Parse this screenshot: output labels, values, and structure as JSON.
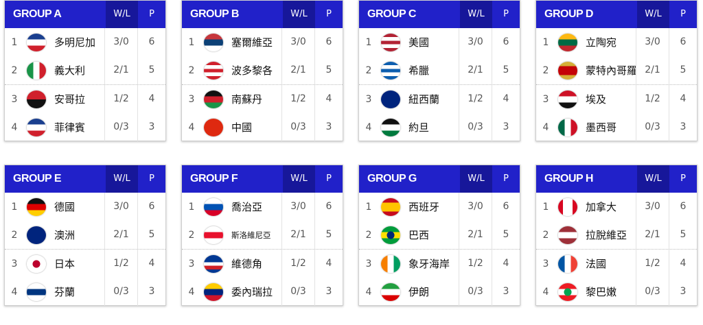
{
  "headers": {
    "wl": "W/L",
    "p": "P"
  },
  "colors": {
    "header": "#2121c9",
    "header_wl": "#17179a"
  },
  "groups": [
    {
      "title": "GROUP A",
      "teams": [
        {
          "rank": "1",
          "name": "多明尼加",
          "wl": "3/0",
          "p": "6",
          "flag": [
            "#1a3f8f",
            "#ffffff",
            "#d0202c"
          ],
          "dir": "v"
        },
        {
          "rank": "2",
          "name": "義大利",
          "wl": "2/1",
          "p": "5",
          "flag": [
            "#1a9448",
            "#ffffff",
            "#d0202c"
          ],
          "dir": "h"
        },
        {
          "rank": "3",
          "name": "安哥拉",
          "wl": "1/2",
          "p": "4",
          "flag": [
            "#d0202c",
            "#111111"
          ],
          "dir": "v"
        },
        {
          "rank": "4",
          "name": "菲律賓",
          "wl": "0/3",
          "p": "3",
          "flag": [
            "#1a3f8f",
            "#ffffff",
            "#d0202c"
          ],
          "dir": "v"
        }
      ]
    },
    {
      "title": "GROUP B",
      "teams": [
        {
          "rank": "1",
          "name": "塞爾維亞",
          "wl": "3/0",
          "p": "6",
          "flag": [
            "#c6363c",
            "#0c4076",
            "#ffffff"
          ],
          "dir": "v"
        },
        {
          "rank": "2",
          "name": "波多黎各",
          "wl": "2/1",
          "p": "5",
          "flag": [
            "#d0202c",
            "#ffffff",
            "#d0202c",
            "#ffffff",
            "#d0202c"
          ],
          "dir": "v"
        },
        {
          "rank": "3",
          "name": "南蘇丹",
          "wl": "1/2",
          "p": "4",
          "flag": [
            "#111111",
            "#d0202c",
            "#1a9448"
          ],
          "dir": "v"
        },
        {
          "rank": "4",
          "name": "中國",
          "wl": "0/3",
          "p": "3",
          "flag": [
            "#de2910",
            "#de2910"
          ],
          "dir": "v"
        }
      ]
    },
    {
      "title": "GROUP C",
      "teams": [
        {
          "rank": "1",
          "name": "美國",
          "wl": "3/0",
          "p": "6",
          "flag": [
            "#b22234",
            "#ffffff",
            "#b22234",
            "#ffffff",
            "#b22234"
          ],
          "dir": "v"
        },
        {
          "rank": "2",
          "name": "希臘",
          "wl": "2/1",
          "p": "5",
          "flag": [
            "#0d5eaf",
            "#ffffff",
            "#0d5eaf",
            "#ffffff",
            "#0d5eaf"
          ],
          "dir": "v"
        },
        {
          "rank": "3",
          "name": "紐西蘭",
          "wl": "1/2",
          "p": "4",
          "flag": [
            "#00247d",
            "#00247d"
          ],
          "dir": "v"
        },
        {
          "rank": "4",
          "name": "約旦",
          "wl": "0/3",
          "p": "3",
          "flag": [
            "#111111",
            "#ffffff",
            "#007a3d"
          ],
          "dir": "v"
        }
      ]
    },
    {
      "title": "GROUP D",
      "teams": [
        {
          "rank": "1",
          "name": "立陶宛",
          "wl": "3/0",
          "p": "6",
          "flag": [
            "#fdb913",
            "#006a44",
            "#c1272d"
          ],
          "dir": "v"
        },
        {
          "rank": "2",
          "name": "蒙特內哥羅",
          "wl": "2/1",
          "p": "5",
          "flag": [
            "#d4af37",
            "#c40308",
            "#c40308",
            "#d4af37"
          ],
          "dir": "v"
        },
        {
          "rank": "3",
          "name": "埃及",
          "wl": "1/2",
          "p": "4",
          "flag": [
            "#ce1126",
            "#ffffff",
            "#111111"
          ],
          "dir": "v"
        },
        {
          "rank": "4",
          "name": "墨西哥",
          "wl": "0/3",
          "p": "3",
          "flag": [
            "#006847",
            "#ffffff",
            "#ce1126"
          ],
          "dir": "h"
        }
      ]
    },
    {
      "title": "GROUP E",
      "teams": [
        {
          "rank": "1",
          "name": "德國",
          "wl": "3/0",
          "p": "6",
          "flag": [
            "#111111",
            "#dd0000",
            "#ffce00"
          ],
          "dir": "v"
        },
        {
          "rank": "2",
          "name": "澳洲",
          "wl": "2/1",
          "p": "5",
          "flag": [
            "#00247d",
            "#00247d"
          ],
          "dir": "v"
        },
        {
          "rank": "3",
          "name": "日本",
          "wl": "1/2",
          "p": "4",
          "flag": [
            "#ffffff",
            "#ffffff"
          ],
          "dir": "v",
          "dot": "#bc002d"
        },
        {
          "rank": "4",
          "name": "芬蘭",
          "wl": "0/3",
          "p": "3",
          "flag": [
            "#ffffff",
            "#003580",
            "#ffffff"
          ],
          "dir": "v"
        }
      ]
    },
    {
      "title": "GROUP F",
      "teams": [
        {
          "rank": "1",
          "name": "喬治亞",
          "wl": "3/0",
          "p": "6",
          "flag": [
            "#ffffff",
            "#0052b4",
            "#d80027"
          ],
          "dir": "v"
        },
        {
          "rank": "2",
          "name": "斯洛維尼亞",
          "wl": "2/1",
          "p": "5",
          "flag": [
            "#ffffff",
            "#e8112d",
            "#ffffff"
          ],
          "dir": "v",
          "small": true
        },
        {
          "rank": "3",
          "name": "維德角",
          "wl": "1/2",
          "p": "4",
          "flag": [
            "#003893",
            "#003893",
            "#ffffff",
            "#cf2027",
            "#003893"
          ],
          "dir": "v"
        },
        {
          "rank": "4",
          "name": "委內瑞拉",
          "wl": "0/3",
          "p": "3",
          "flag": [
            "#ffcc00",
            "#00247d",
            "#cf142b"
          ],
          "dir": "v"
        }
      ]
    },
    {
      "title": "GROUP G",
      "teams": [
        {
          "rank": "1",
          "name": "西班牙",
          "wl": "3/0",
          "p": "6",
          "flag": [
            "#c60b1e",
            "#ffc400",
            "#ffc400",
            "#c60b1e"
          ],
          "dir": "v"
        },
        {
          "rank": "2",
          "name": "巴西",
          "wl": "2/1",
          "p": "5",
          "flag": [
            "#009c3b",
            "#ffdf00",
            "#009c3b"
          ],
          "dir": "v",
          "dot": "#002776"
        },
        {
          "rank": "3",
          "name": "象牙海岸",
          "wl": "1/2",
          "p": "4",
          "flag": [
            "#f77f00",
            "#ffffff",
            "#009e60"
          ],
          "dir": "h"
        },
        {
          "rank": "4",
          "name": "伊朗",
          "wl": "0/3",
          "p": "3",
          "flag": [
            "#239f40",
            "#ffffff",
            "#da0000"
          ],
          "dir": "v"
        }
      ]
    },
    {
      "title": "GROUP H",
      "teams": [
        {
          "rank": "1",
          "name": "加拿大",
          "wl": "3/0",
          "p": "6",
          "flag": [
            "#d80621",
            "#ffffff",
            "#ffffff",
            "#d80621"
          ],
          "dir": "h"
        },
        {
          "rank": "2",
          "name": "拉脫維亞",
          "wl": "2/1",
          "p": "5",
          "flag": [
            "#9e3039",
            "#ffffff",
            "#9e3039"
          ],
          "dir": "v"
        },
        {
          "rank": "3",
          "name": "法國",
          "wl": "1/2",
          "p": "4",
          "flag": [
            "#0055a4",
            "#ffffff",
            "#ef4135"
          ],
          "dir": "h"
        },
        {
          "rank": "4",
          "name": "黎巴嫩",
          "wl": "0/3",
          "p": "3",
          "flag": [
            "#ed1c24",
            "#ffffff",
            "#ed1c24"
          ],
          "dir": "v",
          "dot": "#00a651"
        }
      ]
    }
  ]
}
